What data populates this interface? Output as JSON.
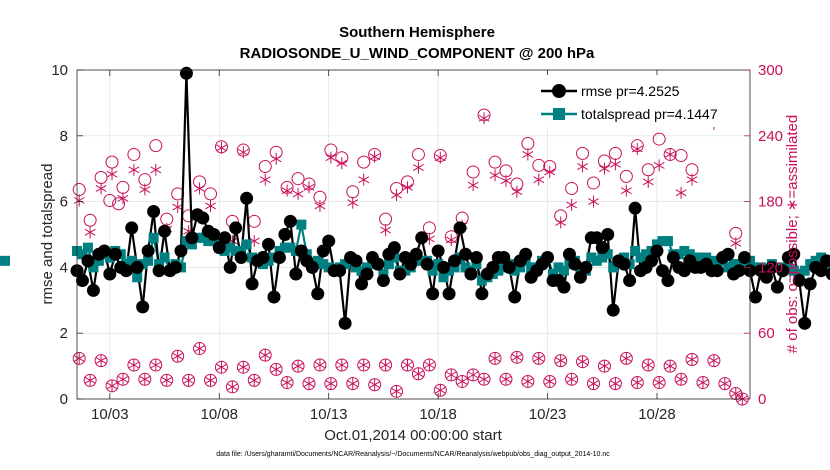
{
  "colors": {
    "rmse": "#000000",
    "spread": "#008080",
    "obs": "#c8105a",
    "axis": "#262626",
    "grid": "#dcdcdc"
  },
  "chart_data": {
    "type": "line",
    "title": "Southern Hemisphere",
    "subtitle": "RADIOSONDE_U_WIND_COMPONENT @ 200 hPa",
    "xlabel": "Oct.01,2014 00:00:00 start",
    "ylabel": "rmse and totalspread",
    "y2label": "# of obs: o=possible; ∗=assimilated",
    "footer": "data file: /Users/gharamti/Documents/NCAR/Reanalysis/~/Documents/NCAR/Reanalysis/webpub/obs_diag_output_2014-10.nc",
    "xlim": [
      1.5,
      32.25
    ],
    "ylim": [
      0,
      10
    ],
    "y2lim": [
      0,
      300
    ],
    "x_ticks": [
      {
        "value": 3,
        "label": "10/03"
      },
      {
        "value": 8,
        "label": "10/08"
      },
      {
        "value": 13,
        "label": "10/13"
      },
      {
        "value": 18,
        "label": "10/18"
      },
      {
        "value": 23,
        "label": "10/23"
      },
      {
        "value": 28,
        "label": "10/28"
      }
    ],
    "y_ticks": [
      {
        "value": 0,
        "label": "0"
      },
      {
        "value": 2,
        "label": "2"
      },
      {
        "value": 4,
        "label": "4"
      },
      {
        "value": 6,
        "label": "6"
      },
      {
        "value": 8,
        "label": "8"
      },
      {
        "value": 10,
        "label": "10"
      }
    ],
    "y2_ticks": [
      {
        "value": 0,
        "label": "0"
      },
      {
        "value": 60,
        "label": "60"
      },
      {
        "value": 120,
        "label": "120"
      },
      {
        "value": 180,
        "label": "180"
      },
      {
        "value": 240,
        "label": "240"
      },
      {
        "value": 300,
        "label": "300"
      }
    ],
    "x_step": 0.25,
    "x_start": 1.5,
    "grid": true,
    "legend_position": "top-right",
    "series": [
      {
        "name": "rmse pr=4.2525",
        "marker": "circle",
        "values": [
          3.9,
          3.6,
          4.2,
          3.3,
          4.4,
          4.5,
          3.8,
          4.4,
          4.0,
          3.9,
          5.2,
          4.0,
          2.8,
          4.5,
          5.7,
          3.9,
          5.1,
          3.9,
          4.0,
          4.5,
          9.9,
          4.9,
          5.6,
          5.5,
          5.1,
          5.0,
          4.6,
          4.9,
          4.0,
          5.2,
          4.3,
          6.1,
          3.5,
          4.2,
          4.3,
          4.7,
          3.1,
          4.3,
          5.0,
          5.4,
          3.8,
          4.5,
          4.2,
          4.0,
          3.2,
          4.5,
          4.8,
          3.9,
          3.9,
          2.3,
          4.3,
          4.2,
          3.5,
          3.8,
          4.3,
          4.1,
          3.6,
          4.4,
          4.6,
          3.8,
          4.3,
          4.1,
          4.4,
          4.9,
          4.1,
          3.2,
          4.5,
          4.0,
          3.2,
          4.2,
          5.2,
          4.4,
          3.8,
          4.3,
          3.2,
          3.8,
          4.0,
          4.3,
          4.3,
          4.0,
          3.1,
          4.2,
          4.4,
          3.7,
          3.9,
          4.1,
          4.3,
          3.6,
          3.6,
          3.4,
          4.4,
          4.1,
          3.7,
          4.0,
          4.9,
          4.9,
          4.6,
          5.0,
          2.7,
          4.2,
          4.1,
          3.6,
          5.8,
          3.9,
          4.0,
          4.2,
          4.5,
          3.9,
          3.6,
          4.3,
          4.0,
          3.9,
          4.2,
          4.0,
          4.0,
          4.1,
          3.9,
          3.9,
          4.3,
          4.4,
          3.8,
          3.9,
          4.3,
          3.9,
          3.1,
          3.9,
          3.7,
          4.0,
          3.4,
          3.9,
          4.3,
          4.4,
          3.6,
          2.3,
          3.5,
          4.0,
          3.9,
          4.2,
          3.8,
          3.5,
          4.0,
          4.3,
          4.4,
          4.0,
          3.9,
          5.3,
          4.6,
          4.0,
          4.2,
          4.2,
          4.4,
          4.6,
          4.2,
          4.1,
          3.8,
          4.1,
          4.4,
          4.4,
          4.3,
          4.8,
          4.5,
          4.2,
          3.9,
          4.0,
          4.2,
          3.9,
          3.1,
          4.3,
          6.5,
          4.4,
          4.6,
          4.4,
          4.2,
          4.2,
          4.1,
          4.3,
          4.5,
          4.2,
          4.0,
          4.2,
          4.4,
          4.0,
          3.3,
          5.0,
          4.6,
          4.7,
          4.5,
          4.5,
          4.2
        ]
      },
      {
        "name": "totalspread pr=4.1447",
        "marker": "square",
        "values": [
          4.5,
          4.4,
          4.6,
          4.0,
          4.2,
          4.4,
          4.3,
          4.5,
          4.4,
          4.1,
          4.2,
          3.7,
          4.1,
          4.2,
          4.9,
          4.1,
          4.3,
          3.9,
          4.1,
          4.0,
          4.8,
          4.7,
          4.9,
          4.9,
          4.8,
          4.8,
          4.6,
          4.5,
          4.6,
          4.5,
          4.5,
          4.7,
          4.3,
          4.2,
          4.1,
          4.2,
          4.3,
          4.5,
          4.6,
          4.6,
          4.5,
          5.3,
          4.4,
          4.1,
          4.2,
          4.1,
          4.0,
          3.9,
          4.0,
          4.1,
          4.2,
          4.0,
          3.9,
          4.0,
          4.1,
          4.1,
          3.8,
          4.1,
          4.3,
          3.9,
          3.9,
          4.0,
          4.2,
          4.2,
          4.2,
          3.9,
          4.1,
          3.7,
          3.9,
          4.0,
          4.3,
          4.0,
          3.9,
          4.1,
          3.6,
          3.7,
          3.8,
          3.9,
          4.0,
          4.1,
          3.9,
          4.0,
          4.2,
          4.0,
          4.0,
          4.2,
          4.3,
          3.8,
          4.0,
          3.9,
          4.1,
          4.2,
          4.0,
          3.9,
          4.3,
          4.2,
          4.3,
          4.4,
          4.0,
          4.2,
          4.3,
          4.1,
          4.5,
          4.3,
          4.4,
          4.5,
          4.7,
          4.8,
          4.8,
          4.4,
          4.4,
          4.5,
          4.4,
          4.3,
          4.3,
          4.3,
          4.2,
          4.1,
          4.2,
          4.0,
          4.1,
          4.1,
          4.0,
          4.2,
          4.0,
          4.0,
          3.9,
          4.1,
          4.0,
          4.0,
          4.0,
          3.9,
          3.8,
          3.9,
          4.1,
          4.2,
          4.3,
          4.1,
          4.2,
          3.9,
          4.0,
          4.1,
          4.2,
          4.1,
          4.0,
          4.3,
          4.1,
          3.9,
          4.0,
          4.1,
          4.0,
          4.2,
          4.0,
          4.0,
          4.3,
          4.3,
          4.4,
          4.4,
          4.5,
          4.8,
          4.7,
          4.6,
          4.9,
          5.0,
          5.0,
          4.7,
          4.3,
          4.2,
          4.3,
          4.3,
          4.2,
          4.3,
          4.1,
          4.0,
          4.1,
          4.1,
          4.2,
          4.0,
          4.0,
          4.1,
          4.0,
          4.0,
          4.2,
          4.1,
          4.1,
          4.2,
          4.3,
          4.4,
          4.3,
          4.2
        ]
      }
    ],
    "obs_possible": [
      {
        "x": 1.6,
        "v": 191
      },
      {
        "x": 2.1,
        "v": 163
      },
      {
        "x": 2.6,
        "v": 202
      },
      {
        "x": 3.0,
        "v": 181
      },
      {
        "x": 3.1,
        "v": 216
      },
      {
        "x": 3.4,
        "v": 178
      },
      {
        "x": 3.6,
        "v": 193
      },
      {
        "x": 4.1,
        "v": 223
      },
      {
        "x": 4.6,
        "v": 200
      },
      {
        "x": 5.1,
        "v": 231
      },
      {
        "x": 5.6,
        "v": 164
      },
      {
        "x": 6.1,
        "v": 187
      },
      {
        "x": 6.6,
        "v": 167
      },
      {
        "x": 7.1,
        "v": 198
      },
      {
        "x": 7.6,
        "v": 187
      },
      {
        "x": 8.1,
        "v": 230
      },
      {
        "x": 8.6,
        "v": 162
      },
      {
        "x": 9.1,
        "v": 227
      },
      {
        "x": 9.6,
        "v": 162
      },
      {
        "x": 10.1,
        "v": 212
      },
      {
        "x": 10.6,
        "v": 225
      },
      {
        "x": 11.1,
        "v": 193
      },
      {
        "x": 11.6,
        "v": 201
      },
      {
        "x": 12.1,
        "v": 196
      },
      {
        "x": 12.6,
        "v": 184
      },
      {
        "x": 13.1,
        "v": 227
      },
      {
        "x": 13.6,
        "v": 220
      },
      {
        "x": 14.1,
        "v": 189
      },
      {
        "x": 14.6,
        "v": 216
      },
      {
        "x": 15.1,
        "v": 223
      },
      {
        "x": 15.6,
        "v": 164
      },
      {
        "x": 16.1,
        "v": 192
      },
      {
        "x": 16.6,
        "v": 198
      },
      {
        "x": 17.1,
        "v": 223
      },
      {
        "x": 17.6,
        "v": 156
      },
      {
        "x": 18.1,
        "v": 222
      },
      {
        "x": 18.6,
        "v": 148
      },
      {
        "x": 19.1,
        "v": 165
      },
      {
        "x": 19.6,
        "v": 207
      },
      {
        "x": 20.1,
        "v": 259
      },
      {
        "x": 20.6,
        "v": 216
      },
      {
        "x": 21.1,
        "v": 208
      },
      {
        "x": 21.6,
        "v": 196
      },
      {
        "x": 22.1,
        "v": 233
      },
      {
        "x": 22.6,
        "v": 213
      },
      {
        "x": 23.1,
        "v": 212
      },
      {
        "x": 23.6,
        "v": 167
      },
      {
        "x": 24.1,
        "v": 192
      },
      {
        "x": 24.6,
        "v": 224
      },
      {
        "x": 25.1,
        "v": 197
      },
      {
        "x": 25.6,
        "v": 217
      },
      {
        "x": 26.1,
        "v": 224
      },
      {
        "x": 26.6,
        "v": 203
      },
      {
        "x": 27.1,
        "v": 231
      },
      {
        "x": 27.6,
        "v": 209
      },
      {
        "x": 28.1,
        "v": 237
      },
      {
        "x": 28.6,
        "v": 223
      },
      {
        "x": 29.1,
        "v": 222
      },
      {
        "x": 29.6,
        "v": 209
      },
      {
        "x": 30.1,
        "v": 283
      },
      {
        "x": 30.6,
        "v": 264
      },
      {
        "x": 31.1,
        "v": 264
      },
      {
        "x": 31.6,
        "v": 151
      }
    ],
    "obs_assimilated": [
      {
        "x": 1.6,
        "v": 181
      },
      {
        "x": 2.1,
        "v": 152
      },
      {
        "x": 2.6,
        "v": 192
      },
      {
        "x": 3.1,
        "v": 205
      },
      {
        "x": 3.6,
        "v": 183
      },
      {
        "x": 4.1,
        "v": 209
      },
      {
        "x": 4.6,
        "v": 191
      },
      {
        "x": 5.1,
        "v": 209
      },
      {
        "x": 5.6,
        "v": 155
      },
      {
        "x": 6.1,
        "v": 175
      },
      {
        "x": 6.6,
        "v": 153
      },
      {
        "x": 7.1,
        "v": 192
      },
      {
        "x": 7.6,
        "v": 176
      },
      {
        "x": 8.1,
        "v": 229
      },
      {
        "x": 8.6,
        "v": 144
      },
      {
        "x": 9.1,
        "v": 225
      },
      {
        "x": 9.6,
        "v": 144
      },
      {
        "x": 10.1,
        "v": 200
      },
      {
        "x": 10.6,
        "v": 219
      },
      {
        "x": 11.1,
        "v": 190
      },
      {
        "x": 11.6,
        "v": 187
      },
      {
        "x": 12.1,
        "v": 193
      },
      {
        "x": 12.6,
        "v": 176
      },
      {
        "x": 13.1,
        "v": 220
      },
      {
        "x": 13.6,
        "v": 215
      },
      {
        "x": 14.1,
        "v": 179
      },
      {
        "x": 14.6,
        "v": 200
      },
      {
        "x": 15.1,
        "v": 221
      },
      {
        "x": 15.6,
        "v": 154
      },
      {
        "x": 16.1,
        "v": 186
      },
      {
        "x": 16.6,
        "v": 193
      },
      {
        "x": 17.1,
        "v": 211
      },
      {
        "x": 17.6,
        "v": 146
      },
      {
        "x": 18.1,
        "v": 220
      },
      {
        "x": 18.6,
        "v": 145
      },
      {
        "x": 19.1,
        "v": 158
      },
      {
        "x": 19.6,
        "v": 195
      },
      {
        "x": 20.1,
        "v": 256
      },
      {
        "x": 20.6,
        "v": 204
      },
      {
        "x": 21.1,
        "v": 199
      },
      {
        "x": 21.6,
        "v": 189
      },
      {
        "x": 22.1,
        "v": 223
      },
      {
        "x": 22.6,
        "v": 200
      },
      {
        "x": 23.1,
        "v": 207
      },
      {
        "x": 23.6,
        "v": 161
      },
      {
        "x": 24.1,
        "v": 177
      },
      {
        "x": 24.6,
        "v": 212
      },
      {
        "x": 25.1,
        "v": 180
      },
      {
        "x": 25.6,
        "v": 210
      },
      {
        "x": 26.1,
        "v": 214
      },
      {
        "x": 26.6,
        "v": 190
      },
      {
        "x": 27.1,
        "v": 228
      },
      {
        "x": 27.6,
        "v": 198
      },
      {
        "x": 28.1,
        "v": 213
      },
      {
        "x": 28.6,
        "v": 223
      },
      {
        "x": 29.1,
        "v": 188
      },
      {
        "x": 29.6,
        "v": 200
      },
      {
        "x": 30.1,
        "v": 275
      },
      {
        "x": 30.6,
        "v": 251
      },
      {
        "x": 31.1,
        "v": 256
      },
      {
        "x": 31.6,
        "v": 142
      }
    ],
    "obs_low_paired": [
      {
        "x": 1.6,
        "v": 37
      },
      {
        "x": 2.1,
        "v": 17
      },
      {
        "x": 2.6,
        "v": 35
      },
      {
        "x": 3.1,
        "v": 12
      },
      {
        "x": 3.6,
        "v": 18
      },
      {
        "x": 4.1,
        "v": 31
      },
      {
        "x": 4.6,
        "v": 18
      },
      {
        "x": 5.1,
        "v": 31
      },
      {
        "x": 5.6,
        "v": 17
      },
      {
        "x": 6.1,
        "v": 39
      },
      {
        "x": 6.6,
        "v": 17
      },
      {
        "x": 7.1,
        "v": 46
      },
      {
        "x": 7.6,
        "v": 17
      },
      {
        "x": 8.1,
        "v": 29
      },
      {
        "x": 8.6,
        "v": 11
      },
      {
        "x": 9.1,
        "v": 29
      },
      {
        "x": 9.6,
        "v": 17
      },
      {
        "x": 10.1,
        "v": 40
      },
      {
        "x": 10.6,
        "v": 27
      },
      {
        "x": 11.1,
        "v": 15
      },
      {
        "x": 11.6,
        "v": 30
      },
      {
        "x": 12.1,
        "v": 14
      },
      {
        "x": 12.6,
        "v": 31
      },
      {
        "x": 13.1,
        "v": 14
      },
      {
        "x": 13.6,
        "v": 31
      },
      {
        "x": 14.1,
        "v": 14
      },
      {
        "x": 14.6,
        "v": 31
      },
      {
        "x": 15.1,
        "v": 13
      },
      {
        "x": 15.6,
        "v": 31
      },
      {
        "x": 16.1,
        "v": 7
      },
      {
        "x": 16.6,
        "v": 31
      },
      {
        "x": 17.1,
        "v": 23
      },
      {
        "x": 17.6,
        "v": 31
      },
      {
        "x": 18.1,
        "v": 8
      },
      {
        "x": 18.6,
        "v": 22
      },
      {
        "x": 19.1,
        "v": 16
      },
      {
        "x": 19.6,
        "v": 22
      },
      {
        "x": 20.1,
        "v": 18
      },
      {
        "x": 20.6,
        "v": 37
      },
      {
        "x": 21.1,
        "v": 18
      },
      {
        "x": 21.6,
        "v": 38
      },
      {
        "x": 22.1,
        "v": 16
      },
      {
        "x": 22.6,
        "v": 37
      },
      {
        "x": 23.1,
        "v": 16
      },
      {
        "x": 23.6,
        "v": 35
      },
      {
        "x": 24.1,
        "v": 18
      },
      {
        "x": 24.6,
        "v": 34
      },
      {
        "x": 25.1,
        "v": 14
      },
      {
        "x": 25.6,
        "v": 30
      },
      {
        "x": 26.1,
        "v": 14
      },
      {
        "x": 26.6,
        "v": 37
      },
      {
        "x": 27.1,
        "v": 15
      },
      {
        "x": 27.6,
        "v": 31
      },
      {
        "x": 28.1,
        "v": 15
      },
      {
        "x": 28.6,
        "v": 30
      },
      {
        "x": 29.1,
        "v": 18
      },
      {
        "x": 29.6,
        "v": 36
      },
      {
        "x": 30.1,
        "v": 15
      },
      {
        "x": 30.6,
        "v": 35
      },
      {
        "x": 31.1,
        "v": 14
      },
      {
        "x": 31.6,
        "v": 5
      },
      {
        "x": 31.9,
        "v": 0
      }
    ]
  }
}
